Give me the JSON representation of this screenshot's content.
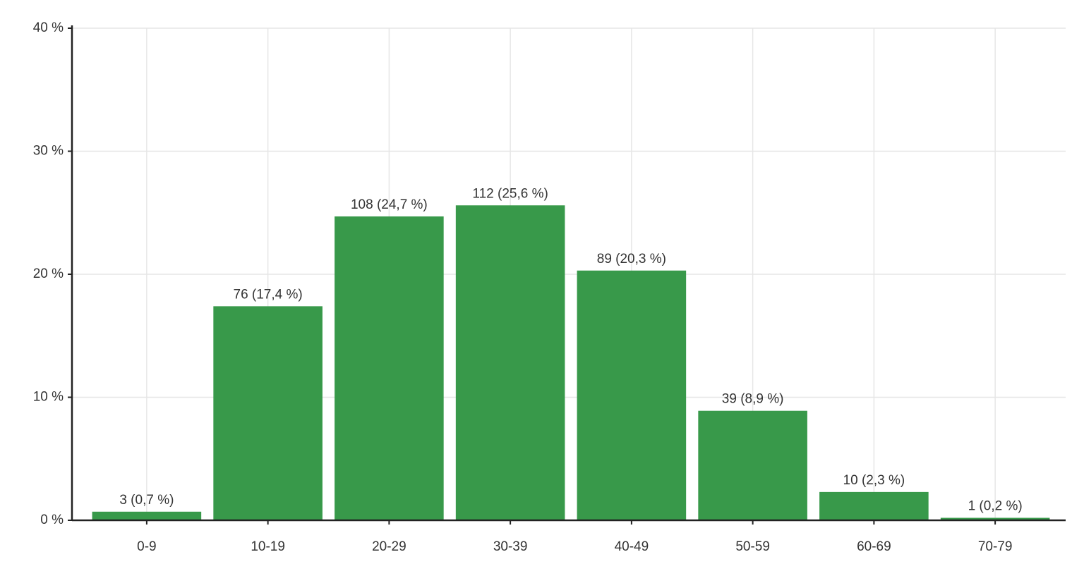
{
  "chart_data": {
    "type": "bar",
    "categories": [
      "0-9",
      "10-19",
      "20-29",
      "30-39",
      "40-49",
      "50-59",
      "60-69",
      "70-79"
    ],
    "values": [
      0.7,
      17.4,
      24.7,
      25.6,
      20.3,
      8.9,
      2.3,
      0.2
    ],
    "value_labels": [
      "3 (0,7 %)",
      "76 (17,4 %)",
      "108 (24,7 %)",
      "112 (25,6 %)",
      "89 (20,3 %)",
      "39 (8,9 %)",
      "10 (2,3 %)",
      "1 (0,2 %)"
    ],
    "color": "#38994a",
    "ylim": [
      0,
      40
    ],
    "yticks": [
      {
        "value": 0,
        "label": "0 %"
      },
      {
        "value": 10,
        "label": "10 %"
      },
      {
        "value": 20,
        "label": "20 %"
      },
      {
        "value": 30,
        "label": "30 %"
      },
      {
        "value": 40,
        "label": "40 %"
      }
    ],
    "grid": true
  }
}
